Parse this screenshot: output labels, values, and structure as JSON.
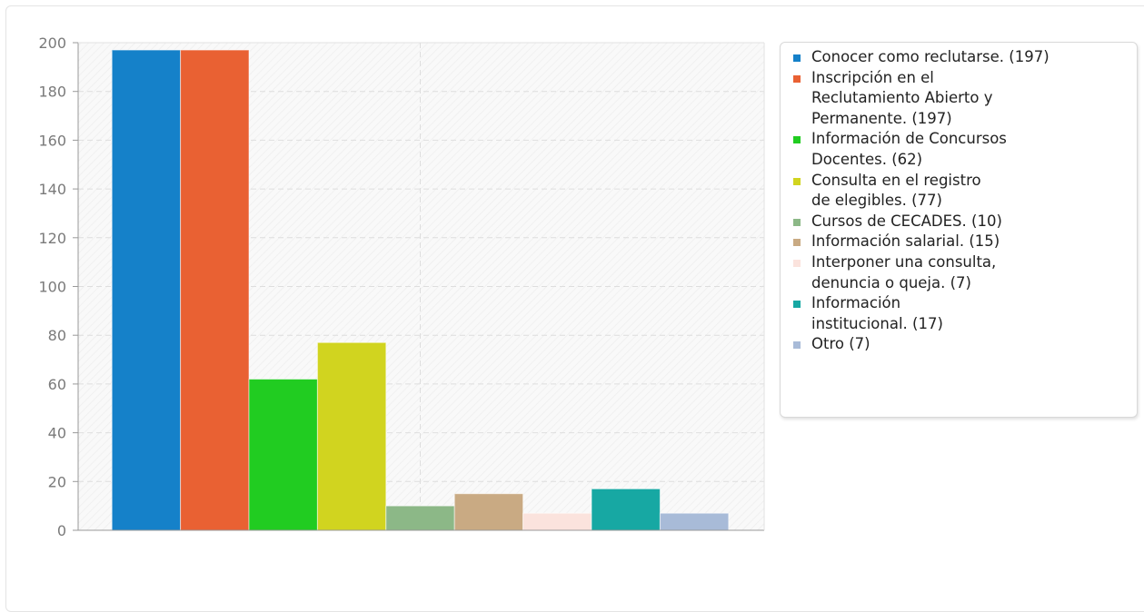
{
  "chart_data": {
    "type": "bar",
    "title": "",
    "xlabel": "",
    "ylabel": "",
    "ylim": [
      0,
      200
    ],
    "yticks": [
      0,
      20,
      40,
      60,
      80,
      100,
      120,
      140,
      160,
      180,
      200
    ],
    "grid": true,
    "legend_position": "right",
    "series": [
      {
        "label": "Conocer como reclutarse. (197)",
        "value": 197,
        "color": "#1581c9"
      },
      {
        "label": "Inscripción en el\nReclutamiento Abierto y\nPermanente. (197)",
        "value": 197,
        "color": "#e96133"
      },
      {
        "label": "Información de Concursos\nDocentes. (62)",
        "value": 62,
        "color": "#21cc21"
      },
      {
        "label": "Consulta en el registro\nde elegibles. (77)",
        "value": 77,
        "color": "#d1d41f"
      },
      {
        "label": "Cursos de CECADES. (10)",
        "value": 10,
        "color": "#8cb887"
      },
      {
        "label": "Información salarial. (15)",
        "value": 15,
        "color": "#c9aa83"
      },
      {
        "label": "Interponer una consulta,\ndenuncia o queja. (7)",
        "value": 7,
        "color": "#fbe3dd"
      },
      {
        "label": "Información\ninstitucional. (17)",
        "value": 17,
        "color": "#17a8a3"
      },
      {
        "label": "Otro (7)",
        "value": 7,
        "color": "#a8bbd8"
      }
    ]
  }
}
